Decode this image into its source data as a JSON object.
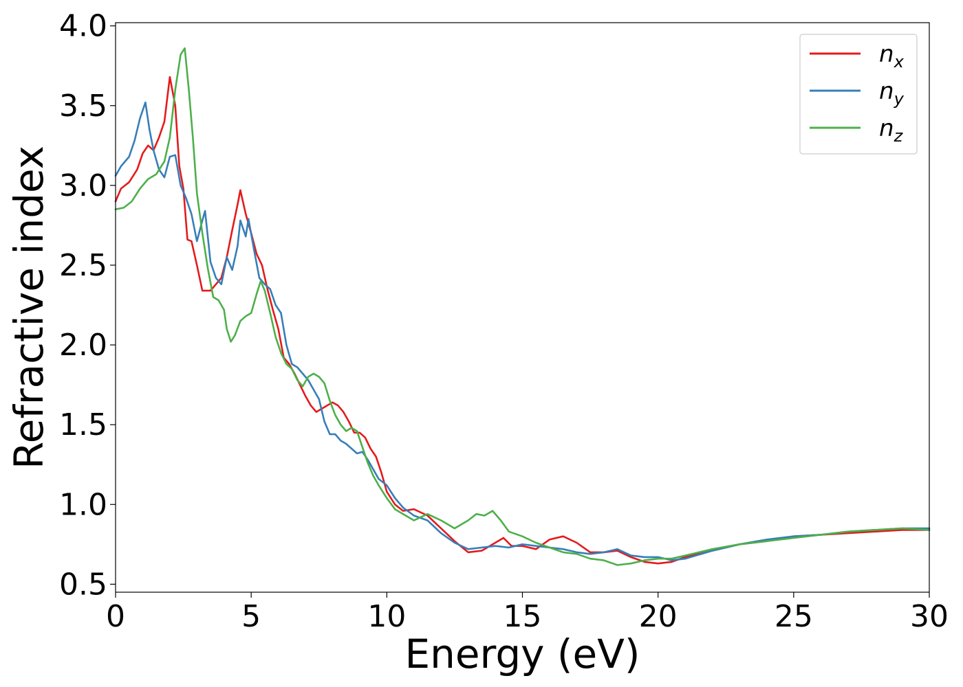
{
  "chart_data": {
    "type": "line",
    "xlabel": "Energy (eV)",
    "ylabel": "Refractive index",
    "xlim": [
      0,
      30
    ],
    "ylim": [
      0.45,
      4.02
    ],
    "xticks": [
      "0",
      "5",
      "10",
      "15",
      "20",
      "25",
      "30"
    ],
    "yticks": [
      "0.5",
      "1.0",
      "1.5",
      "2.0",
      "2.5",
      "3.0",
      "3.5",
      "4.0"
    ],
    "grid": false,
    "legend_position": "top-right",
    "series": [
      {
        "name": "n",
        "subscript": "x",
        "color": "#e41a1c",
        "points": [
          [
            0,
            2.9
          ],
          [
            0.2,
            2.98
          ],
          [
            0.5,
            3.02
          ],
          [
            0.8,
            3.1
          ],
          [
            1.0,
            3.2
          ],
          [
            1.2,
            3.25
          ],
          [
            1.4,
            3.22
          ],
          [
            1.6,
            3.3
          ],
          [
            1.8,
            3.4
          ],
          [
            2.0,
            3.68
          ],
          [
            2.2,
            3.5
          ],
          [
            2.35,
            3.12
          ],
          [
            2.5,
            2.98
          ],
          [
            2.65,
            2.66
          ],
          [
            2.8,
            2.65
          ],
          [
            3.0,
            2.5
          ],
          [
            3.2,
            2.34
          ],
          [
            3.5,
            2.34
          ],
          [
            3.7,
            2.38
          ],
          [
            3.9,
            2.42
          ],
          [
            4.1,
            2.55
          ],
          [
            4.3,
            2.72
          ],
          [
            4.5,
            2.88
          ],
          [
            4.6,
            2.97
          ],
          [
            4.8,
            2.82
          ],
          [
            5.0,
            2.7
          ],
          [
            5.2,
            2.57
          ],
          [
            5.4,
            2.5
          ],
          [
            5.6,
            2.35
          ],
          [
            5.8,
            2.22
          ],
          [
            6.0,
            2.1
          ],
          [
            6.2,
            1.92
          ],
          [
            6.4,
            1.88
          ],
          [
            6.6,
            1.82
          ],
          [
            6.8,
            1.75
          ],
          [
            7.0,
            1.68
          ],
          [
            7.2,
            1.62
          ],
          [
            7.4,
            1.58
          ],
          [
            7.6,
            1.6
          ],
          [
            7.8,
            1.62
          ],
          [
            8.0,
            1.64
          ],
          [
            8.2,
            1.62
          ],
          [
            8.4,
            1.58
          ],
          [
            8.6,
            1.52
          ],
          [
            8.8,
            1.45
          ],
          [
            9.0,
            1.45
          ],
          [
            9.2,
            1.42
          ],
          [
            9.4,
            1.35
          ],
          [
            9.6,
            1.3
          ],
          [
            9.8,
            1.2
          ],
          [
            10.0,
            1.08
          ],
          [
            10.3,
            1.0
          ],
          [
            10.6,
            0.96
          ],
          [
            11.0,
            0.97
          ],
          [
            11.5,
            0.93
          ],
          [
            12.0,
            0.85
          ],
          [
            12.5,
            0.77
          ],
          [
            13.0,
            0.7
          ],
          [
            13.5,
            0.71
          ],
          [
            14.0,
            0.76
          ],
          [
            14.3,
            0.79
          ],
          [
            14.6,
            0.74
          ],
          [
            15.0,
            0.74
          ],
          [
            15.5,
            0.72
          ],
          [
            16.0,
            0.78
          ],
          [
            16.5,
            0.8
          ],
          [
            17.0,
            0.76
          ],
          [
            17.5,
            0.7
          ],
          [
            18.0,
            0.7
          ],
          [
            18.5,
            0.71
          ],
          [
            19.0,
            0.67
          ],
          [
            19.5,
            0.64
          ],
          [
            20.0,
            0.63
          ],
          [
            20.5,
            0.64
          ],
          [
            21.0,
            0.67
          ],
          [
            22.0,
            0.71
          ],
          [
            23.0,
            0.75
          ],
          [
            24.0,
            0.77
          ],
          [
            25.0,
            0.8
          ],
          [
            26.0,
            0.81
          ],
          [
            27.0,
            0.82
          ],
          [
            28.0,
            0.83
          ],
          [
            29.0,
            0.84
          ],
          [
            30.0,
            0.84
          ]
        ]
      },
      {
        "name": "n",
        "subscript": "y",
        "color": "#377eb8",
        "points": [
          [
            0,
            3.06
          ],
          [
            0.2,
            3.12
          ],
          [
            0.5,
            3.18
          ],
          [
            0.7,
            3.28
          ],
          [
            0.9,
            3.42
          ],
          [
            1.1,
            3.52
          ],
          [
            1.25,
            3.35
          ],
          [
            1.4,
            3.22
          ],
          [
            1.6,
            3.1
          ],
          [
            1.8,
            3.05
          ],
          [
            2.0,
            3.18
          ],
          [
            2.2,
            3.19
          ],
          [
            2.4,
            3.0
          ],
          [
            2.6,
            2.92
          ],
          [
            2.8,
            2.82
          ],
          [
            3.0,
            2.65
          ],
          [
            3.2,
            2.78
          ],
          [
            3.3,
            2.84
          ],
          [
            3.5,
            2.52
          ],
          [
            3.7,
            2.42
          ],
          [
            3.9,
            2.38
          ],
          [
            4.1,
            2.55
          ],
          [
            4.3,
            2.47
          ],
          [
            4.5,
            2.62
          ],
          [
            4.6,
            2.78
          ],
          [
            4.8,
            2.68
          ],
          [
            4.9,
            2.79
          ],
          [
            5.1,
            2.6
          ],
          [
            5.3,
            2.42
          ],
          [
            5.5,
            2.38
          ],
          [
            5.7,
            2.35
          ],
          [
            5.9,
            2.25
          ],
          [
            6.1,
            2.2
          ],
          [
            6.3,
            2.0
          ],
          [
            6.5,
            1.88
          ],
          [
            6.7,
            1.86
          ],
          [
            6.9,
            1.82
          ],
          [
            7.1,
            1.78
          ],
          [
            7.3,
            1.72
          ],
          [
            7.5,
            1.66
          ],
          [
            7.7,
            1.52
          ],
          [
            7.9,
            1.44
          ],
          [
            8.1,
            1.44
          ],
          [
            8.3,
            1.4
          ],
          [
            8.5,
            1.38
          ],
          [
            8.7,
            1.35
          ],
          [
            8.9,
            1.32
          ],
          [
            9.1,
            1.33
          ],
          [
            9.3,
            1.28
          ],
          [
            9.5,
            1.22
          ],
          [
            9.7,
            1.16
          ],
          [
            10.0,
            1.12
          ],
          [
            10.3,
            1.04
          ],
          [
            10.6,
            0.98
          ],
          [
            11.0,
            0.93
          ],
          [
            11.5,
            0.9
          ],
          [
            12.0,
            0.82
          ],
          [
            12.5,
            0.76
          ],
          [
            13.0,
            0.72
          ],
          [
            13.5,
            0.73
          ],
          [
            14.0,
            0.74
          ],
          [
            14.5,
            0.73
          ],
          [
            15.0,
            0.75
          ],
          [
            15.5,
            0.74
          ],
          [
            16.0,
            0.73
          ],
          [
            16.5,
            0.72
          ],
          [
            17.0,
            0.7
          ],
          [
            17.5,
            0.69
          ],
          [
            18.0,
            0.7
          ],
          [
            18.5,
            0.72
          ],
          [
            19.0,
            0.68
          ],
          [
            19.5,
            0.67
          ],
          [
            20.0,
            0.67
          ],
          [
            20.5,
            0.65
          ],
          [
            21.0,
            0.66
          ],
          [
            22.0,
            0.71
          ],
          [
            23.0,
            0.75
          ],
          [
            24.0,
            0.78
          ],
          [
            25.0,
            0.8
          ],
          [
            26.0,
            0.81
          ],
          [
            27.0,
            0.83
          ],
          [
            28.0,
            0.84
          ],
          [
            29.0,
            0.85
          ],
          [
            30.0,
            0.85
          ]
        ]
      },
      {
        "name": "n",
        "subscript": "z",
        "color": "#4daf4a",
        "points": [
          [
            0,
            2.85
          ],
          [
            0.3,
            2.86
          ],
          [
            0.6,
            2.9
          ],
          [
            0.9,
            2.98
          ],
          [
            1.2,
            3.04
          ],
          [
            1.5,
            3.07
          ],
          [
            1.8,
            3.15
          ],
          [
            2.0,
            3.3
          ],
          [
            2.2,
            3.6
          ],
          [
            2.4,
            3.82
          ],
          [
            2.55,
            3.86
          ],
          [
            2.7,
            3.6
          ],
          [
            2.85,
            3.3
          ],
          [
            3.0,
            2.95
          ],
          [
            3.2,
            2.7
          ],
          [
            3.4,
            2.48
          ],
          [
            3.6,
            2.3
          ],
          [
            3.8,
            2.28
          ],
          [
            4.0,
            2.22
          ],
          [
            4.1,
            2.1
          ],
          [
            4.25,
            2.02
          ],
          [
            4.4,
            2.06
          ],
          [
            4.6,
            2.15
          ],
          [
            4.8,
            2.18
          ],
          [
            5.0,
            2.2
          ],
          [
            5.2,
            2.32
          ],
          [
            5.35,
            2.4
          ],
          [
            5.5,
            2.34
          ],
          [
            5.7,
            2.2
          ],
          [
            5.9,
            2.05
          ],
          [
            6.1,
            1.95
          ],
          [
            6.3,
            1.88
          ],
          [
            6.5,
            1.85
          ],
          [
            6.7,
            1.78
          ],
          [
            6.9,
            1.74
          ],
          [
            7.1,
            1.8
          ],
          [
            7.3,
            1.82
          ],
          [
            7.5,
            1.8
          ],
          [
            7.7,
            1.76
          ],
          [
            7.9,
            1.65
          ],
          [
            8.1,
            1.56
          ],
          [
            8.3,
            1.5
          ],
          [
            8.5,
            1.46
          ],
          [
            8.7,
            1.48
          ],
          [
            8.9,
            1.46
          ],
          [
            9.1,
            1.36
          ],
          [
            9.3,
            1.26
          ],
          [
            9.5,
            1.18
          ],
          [
            9.7,
            1.12
          ],
          [
            10.0,
            1.04
          ],
          [
            10.3,
            0.97
          ],
          [
            10.6,
            0.94
          ],
          [
            11.0,
            0.9
          ],
          [
            11.5,
            0.94
          ],
          [
            12.0,
            0.9
          ],
          [
            12.5,
            0.85
          ],
          [
            13.0,
            0.9
          ],
          [
            13.3,
            0.94
          ],
          [
            13.6,
            0.93
          ],
          [
            13.9,
            0.96
          ],
          [
            14.2,
            0.9
          ],
          [
            14.5,
            0.83
          ],
          [
            15.0,
            0.8
          ],
          [
            15.5,
            0.76
          ],
          [
            16.0,
            0.73
          ],
          [
            16.5,
            0.7
          ],
          [
            17.0,
            0.69
          ],
          [
            17.5,
            0.66
          ],
          [
            18.0,
            0.65
          ],
          [
            18.5,
            0.62
          ],
          [
            19.0,
            0.63
          ],
          [
            19.5,
            0.65
          ],
          [
            20.0,
            0.66
          ],
          [
            20.5,
            0.66
          ],
          [
            21.0,
            0.68
          ],
          [
            22.0,
            0.72
          ],
          [
            23.0,
            0.75
          ],
          [
            24.0,
            0.77
          ],
          [
            25.0,
            0.79
          ],
          [
            26.0,
            0.81
          ],
          [
            27.0,
            0.83
          ],
          [
            28.0,
            0.84
          ],
          [
            29.0,
            0.85
          ],
          [
            30.0,
            0.84
          ]
        ]
      }
    ]
  }
}
